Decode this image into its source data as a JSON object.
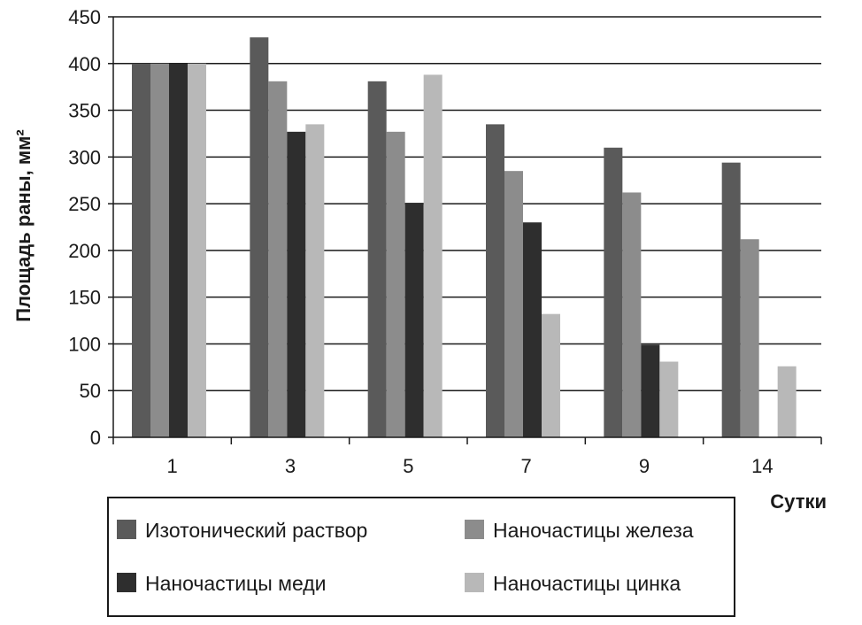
{
  "chart_data": {
    "type": "bar",
    "ylabel": "Площадь раны, мм²",
    "xlabel": "Сутки",
    "categories": [
      "1",
      "3",
      "5",
      "7",
      "9",
      "14"
    ],
    "ylim": [
      0,
      450
    ],
    "yticks": [
      0,
      50,
      100,
      150,
      200,
      250,
      300,
      350,
      400,
      450
    ],
    "grid": true,
    "legend_position": "bottom",
    "series": [
      {
        "name": "Изотонический раствор",
        "color": "#5a5a5a",
        "values": [
          400,
          428,
          381,
          335,
          310,
          294
        ]
      },
      {
        "name": "Наночастицы железа",
        "color": "#8c8c8c",
        "values": [
          400,
          381,
          327,
          285,
          262,
          212
        ]
      },
      {
        "name": "Наночастицы меди",
        "color": "#2e2e2e",
        "values": [
          400,
          327,
          251,
          230,
          99,
          0
        ]
      },
      {
        "name": "Наночастицы цинка",
        "color": "#b8b8b8",
        "values": [
          400,
          335,
          388,
          132,
          81,
          76
        ]
      }
    ]
  }
}
